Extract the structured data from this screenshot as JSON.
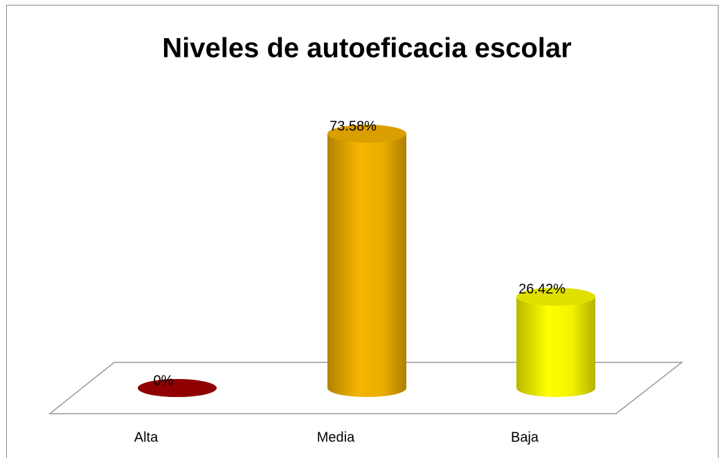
{
  "chart_data": {
    "type": "cylinder",
    "title": "Niveles de autoeficacia escolar",
    "categories": [
      "Alta",
      "Media",
      "Baja"
    ],
    "values": [
      0,
      73.58,
      26.42
    ],
    "value_labels": [
      "0%",
      "73.58%",
      "26.42%"
    ],
    "colors": [
      "#a30000",
      "#f7b500",
      "#ffff00"
    ]
  }
}
